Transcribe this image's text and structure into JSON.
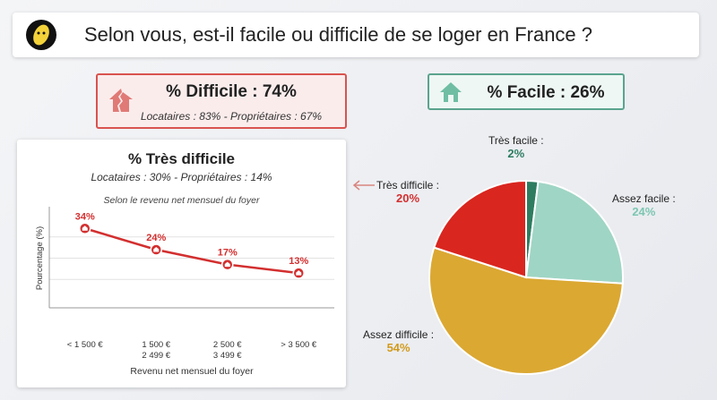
{
  "header": {
    "title": "Selon vous, est-il facile ou difficile de se loger en France ?"
  },
  "card_difficult": {
    "headline": "% Difficile : 74%",
    "detail": "Locataires : 83% - Propriétaires : 67%",
    "color": "#d9534f"
  },
  "card_easy": {
    "headline": "% Facile : 26%",
    "color": "#5aa48e"
  },
  "panel": {
    "title": "% Très difficile",
    "subtitle": "Locataires : 30% - Propriétaires : 14%",
    "note": "Selon le revenu net mensuel du foyer"
  },
  "chart_data": [
    {
      "type": "line",
      "title": "% Très difficile",
      "xlabel": "Revenu net mensuel du foyer",
      "ylabel": "Pourcentage (%)",
      "categories": [
        "< 1 500 €",
        "1 500 €\n2 499 €",
        "2 500 €\n3 499 €",
        "> 3 500 €"
      ],
      "series": [
        {
          "values": [
            34,
            24,
            17,
            13
          ],
          "labels": [
            "34%",
            "24%",
            "17%",
            "13%"
          ],
          "color": "#d32f2f"
        }
      ],
      "ylim": [
        0,
        40
      ],
      "grid": true
    },
    {
      "type": "pie",
      "categories": [
        "Très facile :",
        "Assez facile :",
        "Assez difficile :",
        "Très difficile :"
      ],
      "values": [
        2,
        24,
        54,
        20
      ],
      "labels": [
        "2%",
        "24%",
        "54%",
        "20%"
      ],
      "colors": [
        "#2e7d61",
        "#9fd5c4",
        "#dba832",
        "#d9261f"
      ]
    }
  ]
}
